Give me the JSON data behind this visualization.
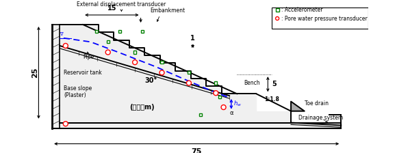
{
  "bg_color": "#ffffff",
  "fig_width": 5.8,
  "fig_height": 2.24,
  "dpi": 100,
  "xlim": [
    -6,
    82
  ],
  "ylim": [
    -6,
    33
  ],
  "accelerometer_color": "#008000",
  "pore_pressure_color": "#ff0000",
  "dashed_line_color": "#0000ff",
  "labels": {
    "external_transducer": "External displacement transducer",
    "embankment": "Embankment",
    "pipe": "Pipe",
    "reservoir": "Reservoir tank",
    "base_slope": "Base slope\n(Plaster)",
    "bench": "Bench",
    "toe_drain": "Toe drain",
    "drainage": "Drainage system",
    "unit": "(単位：m)",
    "dim_15": "15",
    "dim_25": "25",
    "dim_75": "75",
    "dim_1": "1",
    "dim_5": "5",
    "dim_30": "30°",
    "slope_ratio": "1:1.8",
    "hw": "h",
    "hw_sub": "w",
    "alpha": "α"
  },
  "accel_positions": [
    [
      11.5,
      25.2
    ],
    [
      17.5,
      25.2
    ],
    [
      23.5,
      25.2
    ],
    [
      14.5,
      22.5
    ],
    [
      21.5,
      19.8
    ],
    [
      28.5,
      17.2
    ],
    [
      35.5,
      14.5
    ],
    [
      42.5,
      11.8
    ],
    [
      43.5,
      8.2
    ],
    [
      38.5,
      3.5
    ]
  ],
  "pore_positions": [
    [
      3.5,
      21.5
    ],
    [
      14.5,
      19.8
    ],
    [
      21.5,
      17.2
    ],
    [
      28.5,
      14.5
    ],
    [
      35.5,
      11.8
    ],
    [
      42.5,
      9.2
    ],
    [
      44.5,
      5.5
    ],
    [
      3.5,
      1.2
    ]
  ],
  "steps_x": [
    8,
    12,
    12,
    16,
    16,
    20,
    20,
    24,
    24,
    28,
    28,
    32,
    32,
    36,
    36,
    40,
    40,
    44,
    44,
    48
  ],
  "steps_y": [
    27,
    27,
    25,
    25,
    23,
    23,
    21,
    21,
    19,
    19,
    17,
    17,
    15,
    15,
    13,
    13,
    11,
    11,
    9,
    9
  ],
  "phreatic_x": [
    3,
    10,
    18,
    27,
    35,
    42,
    45.5
  ],
  "phreatic_y": [
    23.5,
    22.5,
    19.5,
    16.0,
    12.5,
    9.5,
    8.2
  ]
}
